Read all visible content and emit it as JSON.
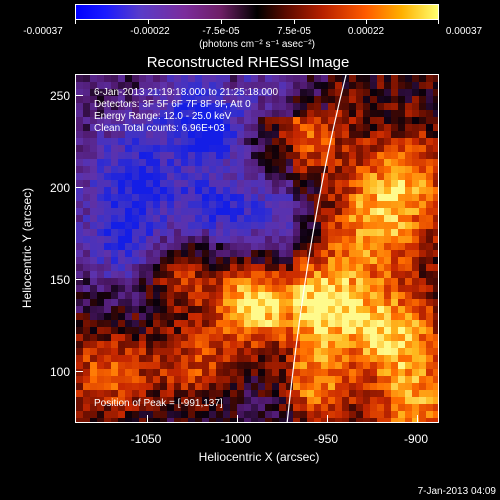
{
  "colorbar": {
    "tick_labels": [
      "-0.00037",
      "-0.00022",
      "-7.5e-05",
      "7.5e-05",
      "0.00022",
      "0.00037"
    ],
    "unit_label": "(photons cm⁻² s⁻¹ asec⁻²)",
    "colormap": [
      "#0000ff",
      "#5a3cc8",
      "#7b2c9c",
      "#000000",
      "#b51f00",
      "#ff5a00",
      "#ffff70"
    ]
  },
  "plot": {
    "title": "Reconstructed RHESSI Image",
    "info_lines": [
      "6-Jan-2013 21:19:18.000 to 21:25:18.000",
      "Detectors: 3F 5F 6F 7F 8F 9F, Att 0",
      "Energy Range: 12.0 - 25.0 keV",
      "Clean     Total counts: 6.96E+03"
    ],
    "peak_text": "Position of Peak = [-991,137]",
    "x_ticks": [
      "-1050",
      "-1000",
      "-950",
      "-900"
    ],
    "y_ticks": [
      "250",
      "200",
      "150",
      "100"
    ],
    "x_label": "Heliocentric X (arcsec)",
    "y_label": "Heliocentric Y (arcsec)",
    "limb_line_color": "#ffffff"
  },
  "footer": {
    "timestamp": "7-Jan-2013 04:09"
  }
}
